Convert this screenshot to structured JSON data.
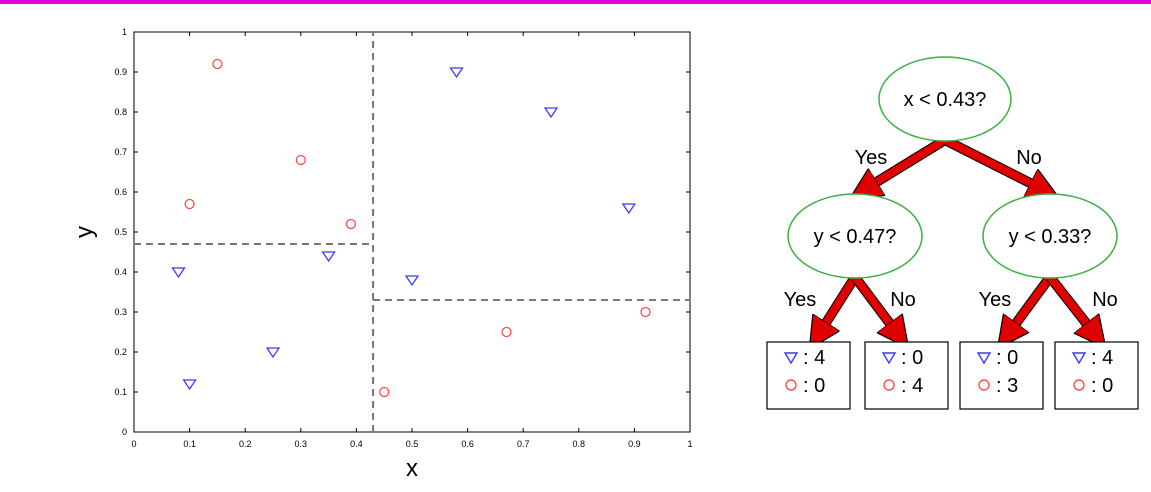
{
  "colors": {
    "accent_rule": "#e000e0",
    "triangle": "#3a3aff",
    "circle": "#ff4d4d",
    "node_border": "#3cb043",
    "arrow": "#e00000"
  },
  "chart_data": {
    "type": "scatter",
    "xlabel": "x",
    "ylabel": "y",
    "xlim": [
      0,
      1
    ],
    "ylim": [
      0,
      1
    ],
    "xticks": [
      "0",
      "0.1",
      "0.2",
      "0.3",
      "0.4",
      "0.5",
      "0.6",
      "0.7",
      "0.8",
      "0.9",
      "1"
    ],
    "yticks": [
      "0",
      "0.1",
      "0.2",
      "0.3",
      "0.4",
      "0.5",
      "0.6",
      "0.7",
      "0.8",
      "0.9",
      "1"
    ],
    "grid": false,
    "series": [
      {
        "marker": "triangle-down",
        "points": [
          {
            "x": 0.08,
            "y": 0.4
          },
          {
            "x": 0.1,
            "y": 0.12
          },
          {
            "x": 0.25,
            "y": 0.2
          },
          {
            "x": 0.35,
            "y": 0.44
          },
          {
            "x": 0.5,
            "y": 0.38
          },
          {
            "x": 0.58,
            "y": 0.9
          },
          {
            "x": 0.75,
            "y": 0.8
          },
          {
            "x": 0.89,
            "y": 0.56
          }
        ]
      },
      {
        "marker": "circle",
        "points": [
          {
            "x": 0.1,
            "y": 0.57
          },
          {
            "x": 0.15,
            "y": 0.92
          },
          {
            "x": 0.3,
            "y": 0.68
          },
          {
            "x": 0.39,
            "y": 0.52
          },
          {
            "x": 0.45,
            "y": 0.1
          },
          {
            "x": 0.67,
            "y": 0.25
          },
          {
            "x": 0.92,
            "y": 0.3
          }
        ]
      }
    ],
    "split_lines": [
      {
        "orientation": "vertical",
        "x": 0.43,
        "y_range": [
          0,
          1
        ]
      },
      {
        "orientation": "horizontal",
        "y": 0.47,
        "x_range": [
          0,
          0.43
        ]
      },
      {
        "orientation": "horizontal",
        "y": 0.33,
        "x_range": [
          0.43,
          1
        ]
      }
    ]
  },
  "tree": {
    "root": {
      "label": "x < 0.43?"
    },
    "left": {
      "label": "y < 0.47?"
    },
    "right": {
      "label": "y < 0.33?"
    },
    "edges": {
      "root_left": "Yes",
      "root_right": "No",
      "left_left": "Yes",
      "left_right": "No",
      "right_left": "Yes",
      "right_right": "No"
    },
    "leaves": [
      {
        "triangle": ": 4",
        "circle": ": 0"
      },
      {
        "triangle": ": 0",
        "circle": ": 4"
      },
      {
        "triangle": ": 0",
        "circle": ": 3"
      },
      {
        "triangle": ": 4",
        "circle": ": 0"
      }
    ]
  }
}
